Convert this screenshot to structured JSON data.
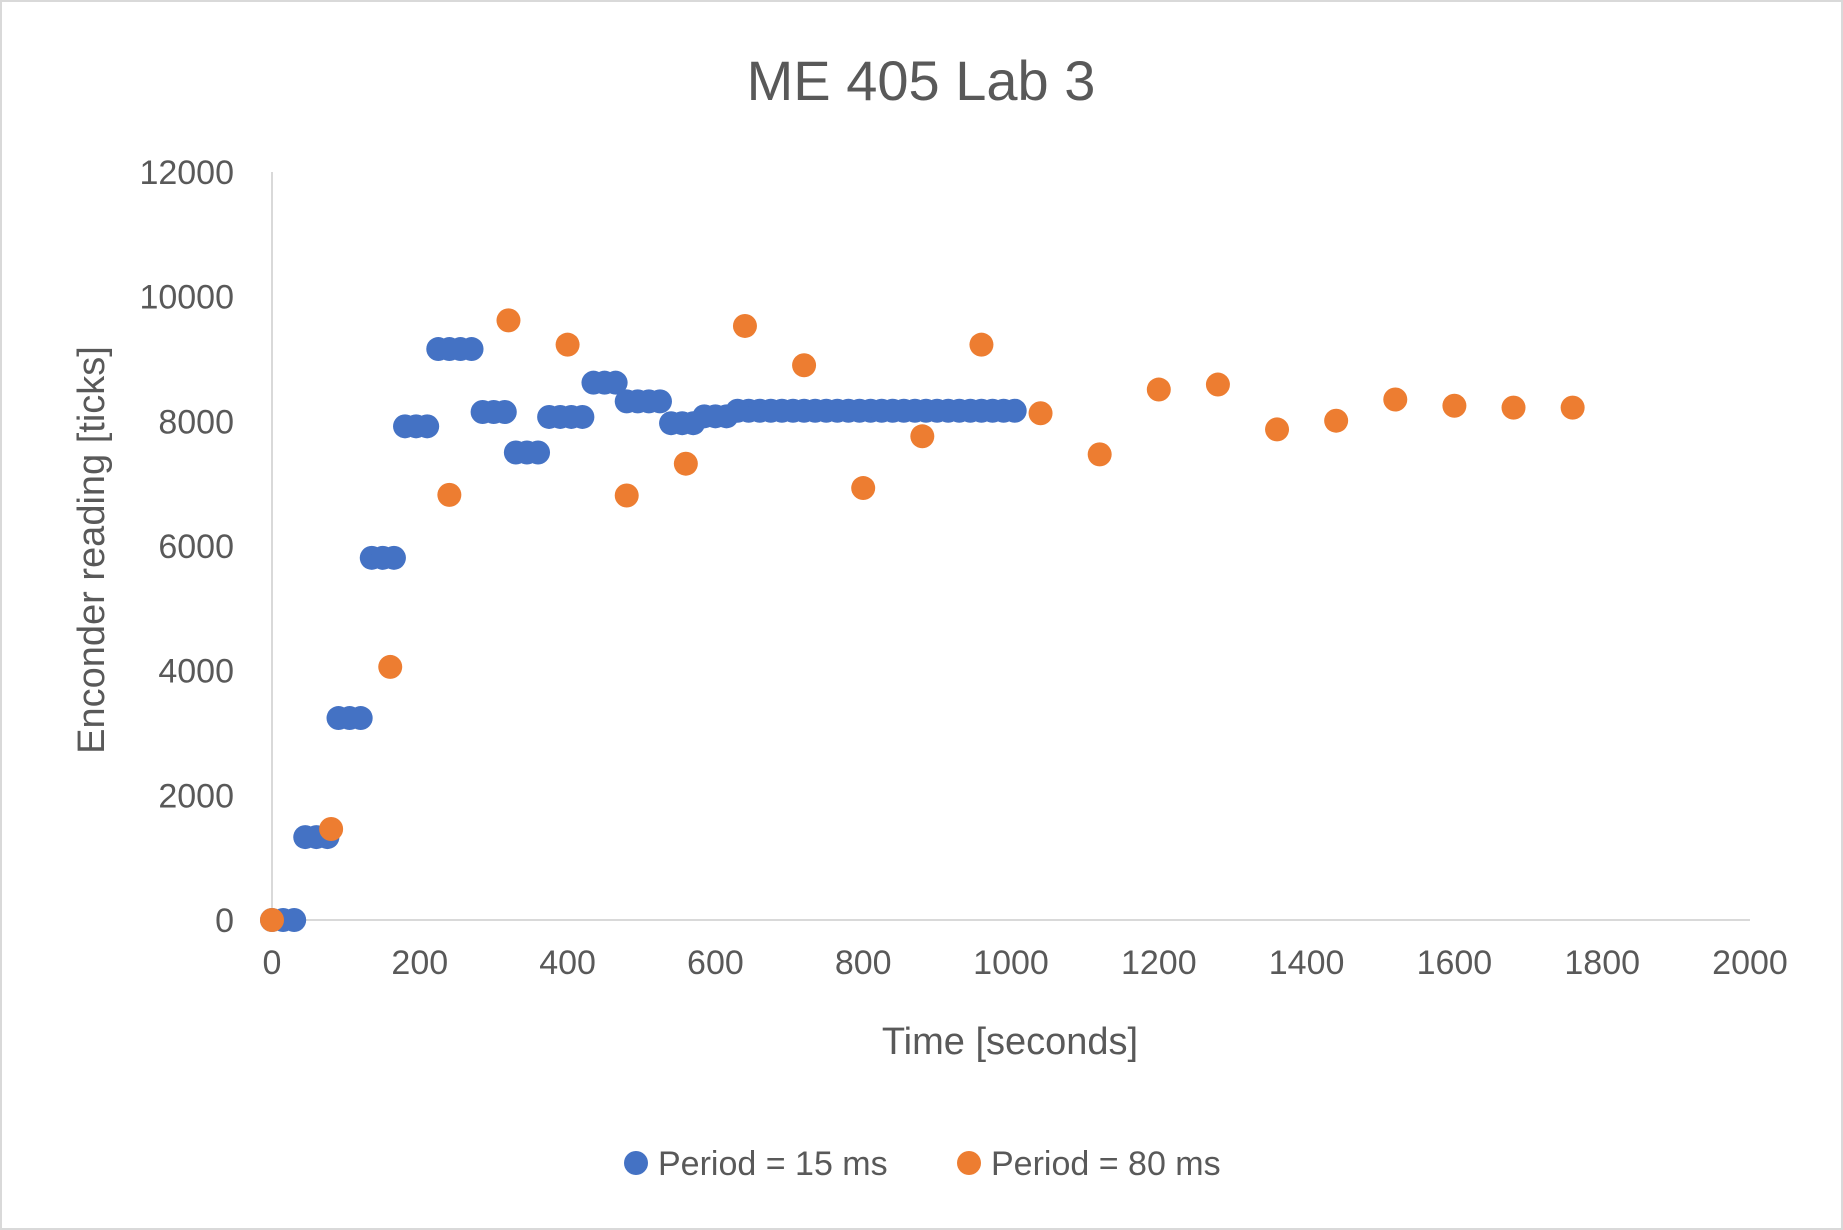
{
  "chart_data": {
    "type": "scatter",
    "title": "ME 405 Lab 3",
    "xlabel": "Time [seconds]",
    "ylabel": "Enconder reading [ticks]",
    "xlim": [
      0,
      2000
    ],
    "ylim": [
      0,
      12000
    ],
    "x_ticks": [
      "0",
      "200",
      "400",
      "600",
      "800",
      "1000",
      "1200",
      "1400",
      "1600",
      "1800",
      "2000"
    ],
    "y_ticks": [
      "0",
      "2000",
      "4000",
      "6000",
      "8000",
      "10000",
      "12000"
    ],
    "grid": false,
    "legend_position": "bottom",
    "series": [
      {
        "name": "Period = 15 ms",
        "color": "#4472C4",
        "points": [
          [
            0,
            0
          ],
          [
            15,
            0
          ],
          [
            30,
            0
          ],
          [
            45,
            1330
          ],
          [
            60,
            1330
          ],
          [
            75,
            1330
          ],
          [
            90,
            3240
          ],
          [
            105,
            3240
          ],
          [
            120,
            3240
          ],
          [
            135,
            5810
          ],
          [
            150,
            5810
          ],
          [
            165,
            5810
          ],
          [
            180,
            7920
          ],
          [
            195,
            7920
          ],
          [
            210,
            7920
          ],
          [
            225,
            9160
          ],
          [
            240,
            9160
          ],
          [
            255,
            9160
          ],
          [
            270,
            9160
          ],
          [
            285,
            8150
          ],
          [
            300,
            8150
          ],
          [
            315,
            8150
          ],
          [
            330,
            7500
          ],
          [
            345,
            7500
          ],
          [
            360,
            7500
          ],
          [
            375,
            8070
          ],
          [
            390,
            8070
          ],
          [
            405,
            8070
          ],
          [
            420,
            8070
          ],
          [
            435,
            8620
          ],
          [
            450,
            8620
          ],
          [
            465,
            8620
          ],
          [
            480,
            8320
          ],
          [
            495,
            8320
          ],
          [
            510,
            8320
          ],
          [
            525,
            8320
          ],
          [
            540,
            7970
          ],
          [
            555,
            7970
          ],
          [
            570,
            7970
          ],
          [
            585,
            8080
          ],
          [
            600,
            8080
          ],
          [
            615,
            8080
          ],
          [
            630,
            8170
          ],
          [
            645,
            8170
          ],
          [
            660,
            8170
          ],
          [
            675,
            8170
          ],
          [
            690,
            8170
          ],
          [
            705,
            8170
          ],
          [
            720,
            8170
          ],
          [
            735,
            8170
          ],
          [
            750,
            8170
          ],
          [
            765,
            8170
          ],
          [
            780,
            8170
          ],
          [
            795,
            8170
          ],
          [
            810,
            8170
          ],
          [
            825,
            8170
          ],
          [
            840,
            8170
          ],
          [
            855,
            8170
          ],
          [
            870,
            8170
          ],
          [
            885,
            8170
          ],
          [
            900,
            8170
          ],
          [
            915,
            8170
          ],
          [
            930,
            8170
          ],
          [
            945,
            8170
          ],
          [
            960,
            8170
          ],
          [
            975,
            8170
          ],
          [
            990,
            8170
          ],
          [
            1005,
            8170
          ]
        ]
      },
      {
        "name": "Period = 80 ms",
        "color": "#ED7D31",
        "points": [
          [
            0,
            0
          ],
          [
            80,
            1460
          ],
          [
            160,
            4060
          ],
          [
            240,
            6820
          ],
          [
            320,
            9620
          ],
          [
            400,
            9230
          ],
          [
            480,
            6810
          ],
          [
            560,
            7320
          ],
          [
            640,
            9530
          ],
          [
            720,
            8900
          ],
          [
            800,
            6930
          ],
          [
            880,
            7760
          ],
          [
            960,
            9230
          ],
          [
            1040,
            8130
          ],
          [
            1120,
            7470
          ],
          [
            1200,
            8510
          ],
          [
            1280,
            8590
          ],
          [
            1360,
            7870
          ],
          [
            1440,
            8010
          ],
          [
            1520,
            8350
          ],
          [
            1600,
            8250
          ],
          [
            1680,
            8220
          ],
          [
            1760,
            8220
          ]
        ]
      }
    ]
  }
}
